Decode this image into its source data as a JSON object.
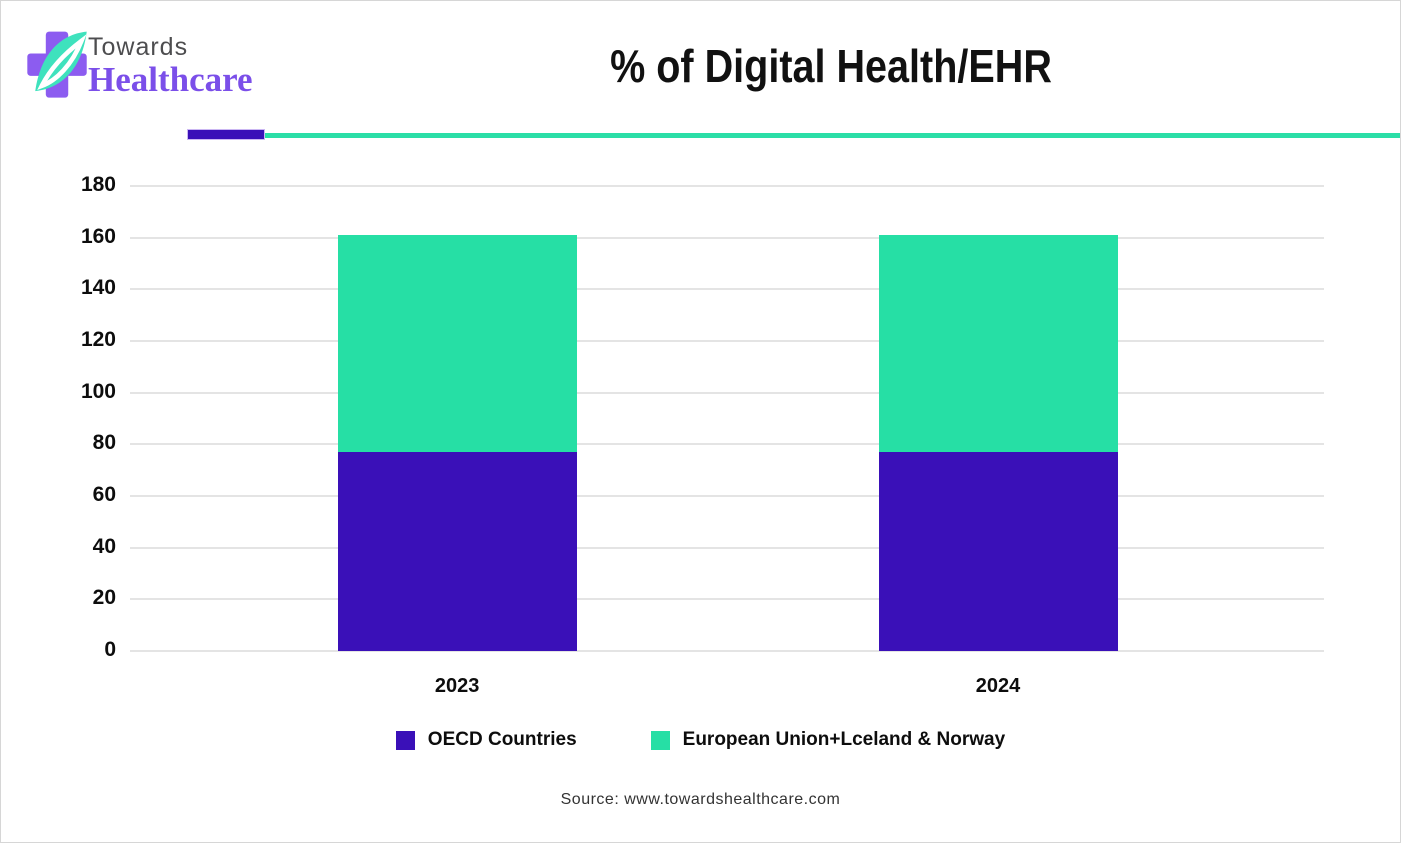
{
  "logo": {
    "line1": "Towards",
    "line2": "Healthcare"
  },
  "title": "% of Digital Health/EHR",
  "source": "Source: www.towardshealthcare.com",
  "colors": {
    "oecd_purple": "#3A10B8",
    "eu_teal": "#26DFA5",
    "divider_teal": "#2BDEA7",
    "divider_purple": "#3A10B8",
    "logo_cross_purple": "#8C5CF0",
    "logo_leaf_teal": "#3EE2BD",
    "healthcare_text_purple": "#7B4FE9",
    "towards_text_gray": "#4D4D4F",
    "gridline_gray": "#E4E4E4"
  },
  "chart_data": {
    "type": "bar",
    "stacked": true,
    "title": "% of Digital Health/EHR",
    "categories": [
      "2023",
      "2024"
    ],
    "series": [
      {
        "name": "OECD Countries",
        "color": "#3A10B8",
        "values": [
          77,
          77
        ]
      },
      {
        "name": "European Union+Lceland & Norway",
        "color": "#26DFA5",
        "values": [
          84,
          84
        ]
      }
    ],
    "stack_totals": [
      161,
      161
    ],
    "ylim": [
      0,
      180
    ],
    "yticks": [
      0,
      20,
      40,
      60,
      80,
      100,
      120,
      140,
      160,
      180
    ],
    "xlabel": "",
    "ylabel": "",
    "grid": "horizontal",
    "legend_position": "bottom"
  }
}
